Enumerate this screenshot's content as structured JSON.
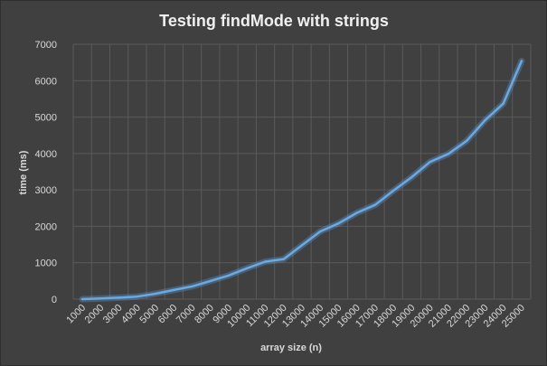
{
  "chart_data": {
    "type": "line",
    "title": "Testing findMode with strings",
    "xlabel": "array size (n)",
    "ylabel": "time (ms)",
    "ylim": [
      0,
      7000
    ],
    "yticks": [
      0,
      1000,
      2000,
      3000,
      4000,
      5000,
      6000,
      7000
    ],
    "grid": true,
    "legend": "none",
    "categories": [
      "1000",
      "2000",
      "3000",
      "4000",
      "5000",
      "6000",
      "7000",
      "8000",
      "9000",
      "10000",
      "11000",
      "12000",
      "13000",
      "14000",
      "15000",
      "16000",
      "17000",
      "18000",
      "19000",
      "20000",
      "21000",
      "22000",
      "23000",
      "24000",
      "25000"
    ],
    "series": [
      {
        "values": [
          0,
          20,
          40,
          70,
          150,
          250,
          350,
          500,
          650,
          850,
          1030,
          1100,
          1480,
          1860,
          2080,
          2370,
          2590,
          2980,
          3350,
          3770,
          3990,
          4350,
          4910,
          5370,
          6540
        ]
      }
    ]
  },
  "colors": {
    "background": "#404040",
    "text": "#d9d9d9",
    "grid": "#5a5a5a",
    "series": "#6aaae4"
  }
}
